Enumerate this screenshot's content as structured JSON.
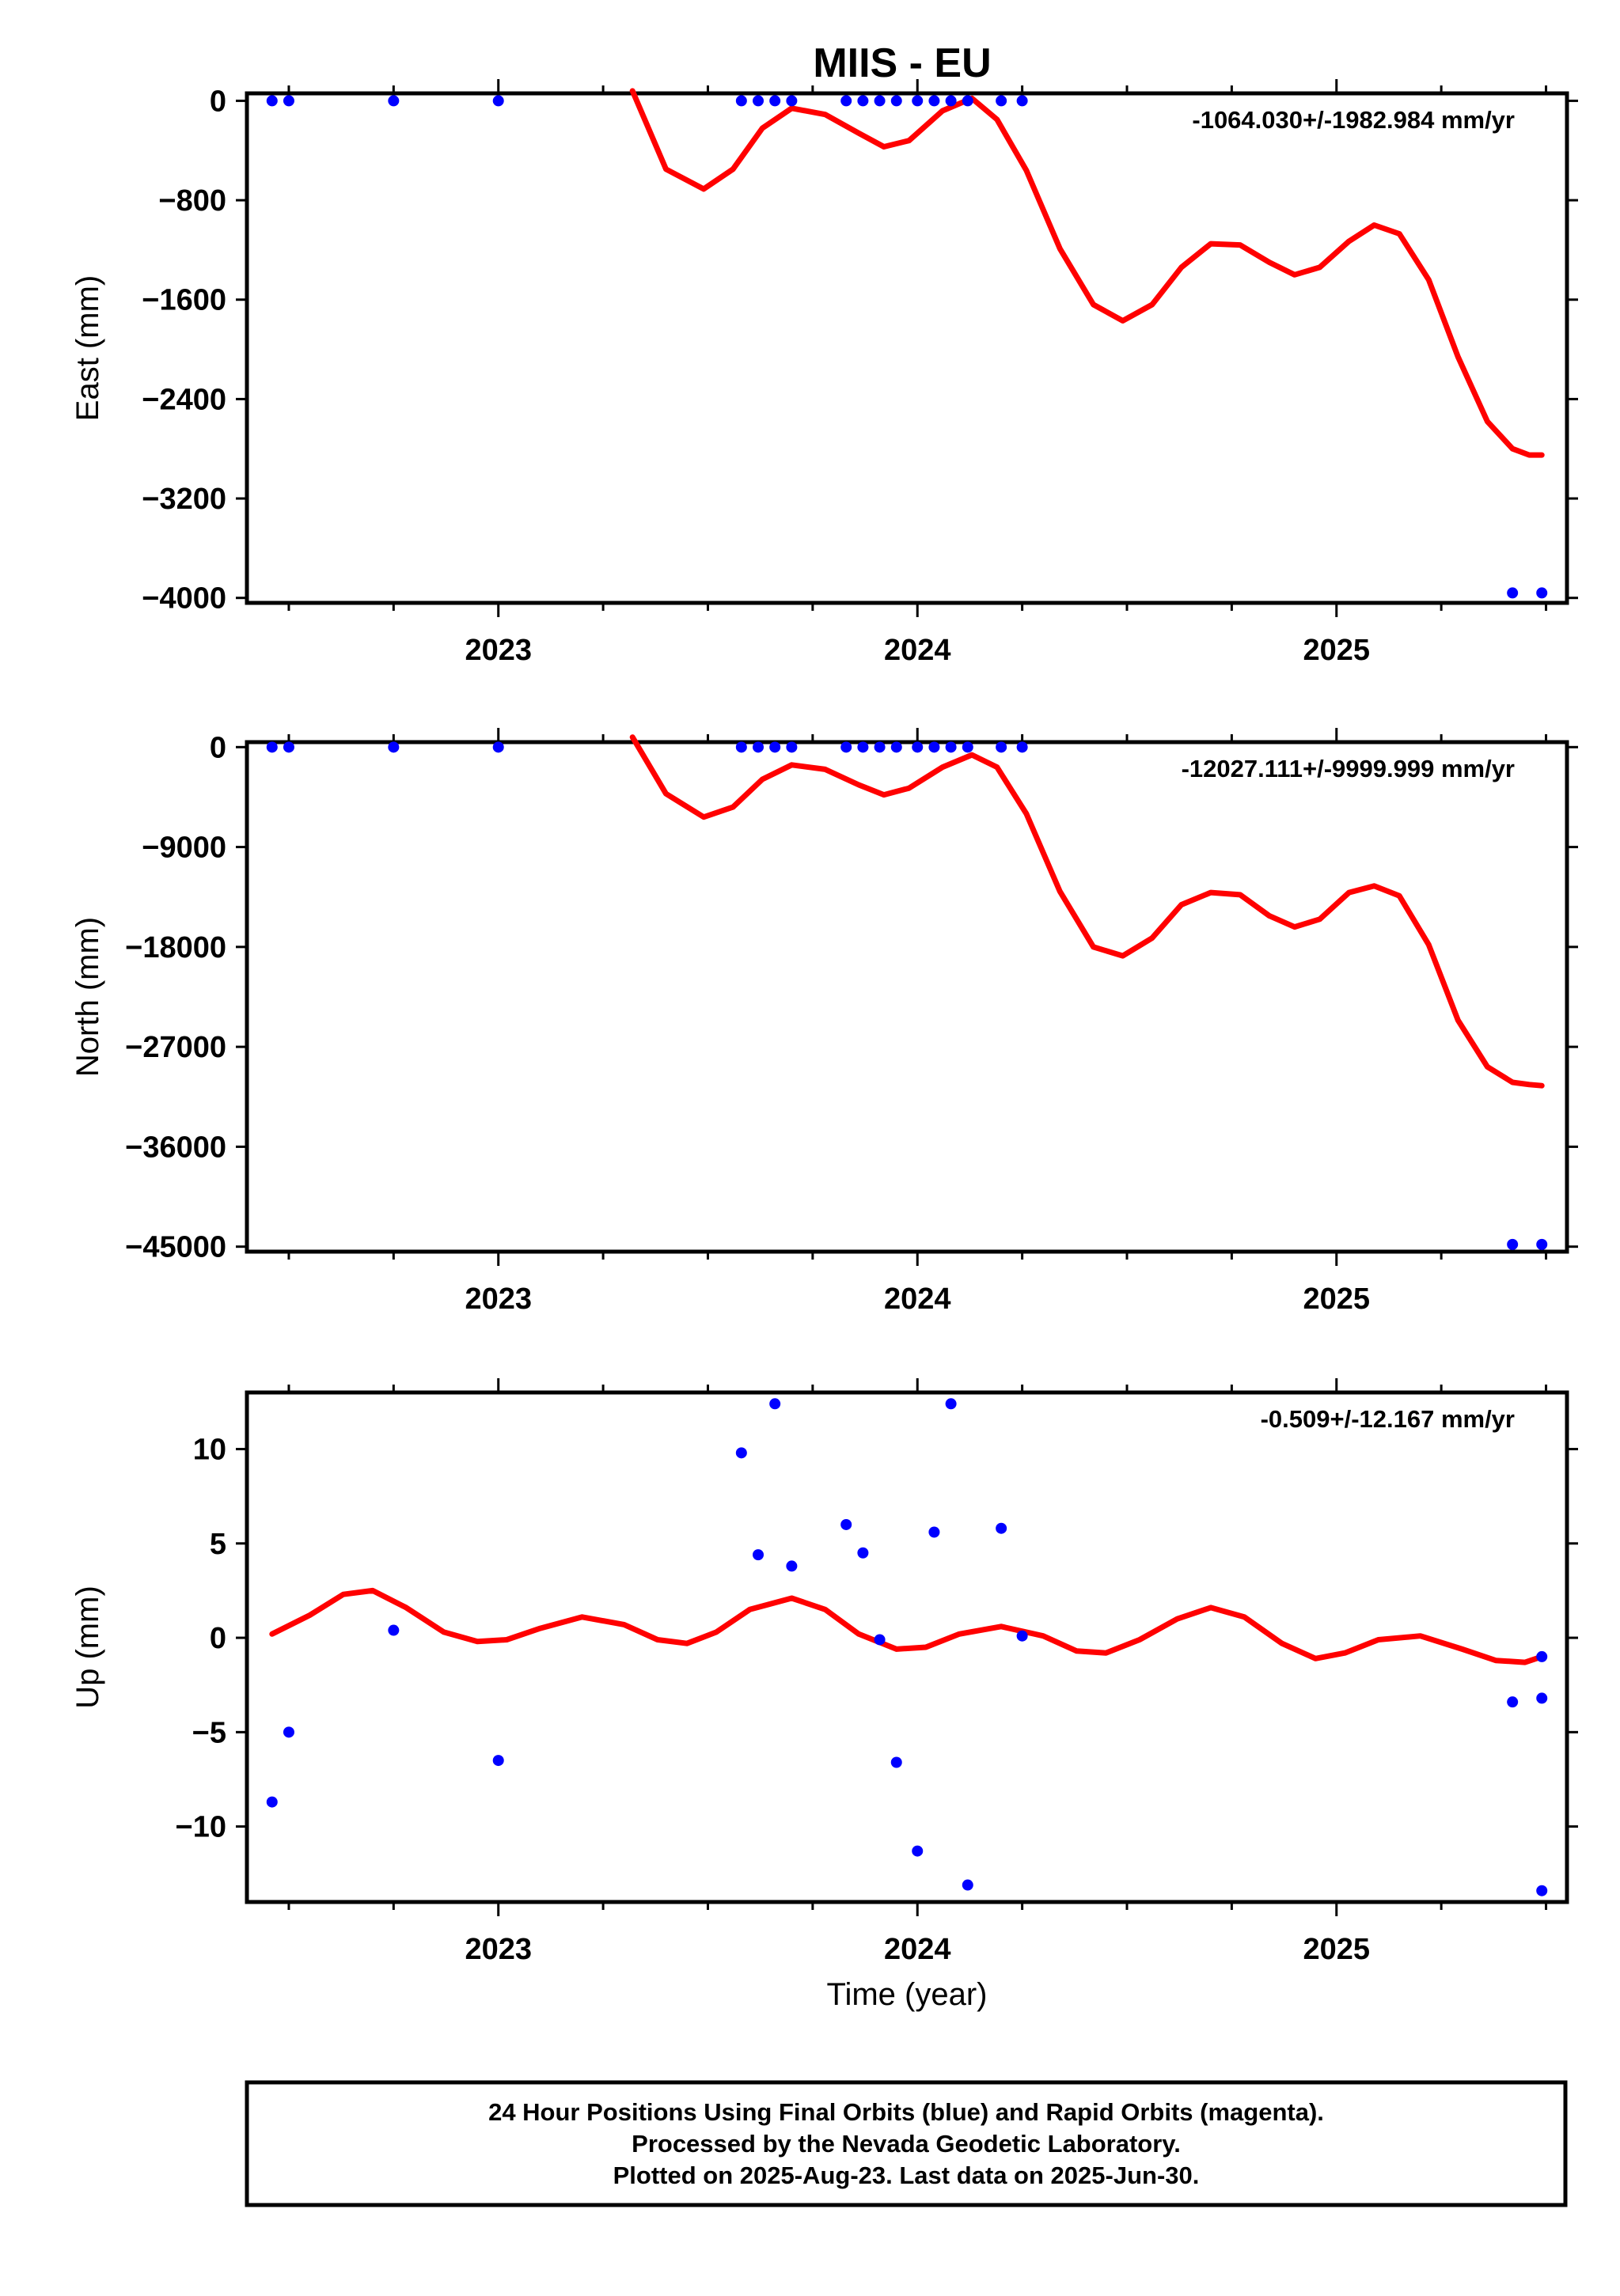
{
  "title": "MIIS - EU",
  "colors": {
    "points": "#0000ff",
    "model": "#ff0000",
    "frame": "#000000"
  },
  "footer": {
    "line1": "24 Hour Positions Using Final Orbits (blue) and Rapid Orbits (magenta).",
    "line2": "Processed by the Nevada Geodetic Laboratory.",
    "line3": "Plotted on 2025-Aug-23. Last data on 2025-Jun-30."
  },
  "chart_data": [
    {
      "type": "scatter",
      "ylabel": "East (mm)",
      "rate": "-1064.030+/-1982.984 mm/yr",
      "xlim": [
        2022.4,
        2025.55
      ],
      "ylim": [
        -4040,
        60
      ],
      "xticks": [
        2023,
        2024,
        2025
      ],
      "yticks": [
        0,
        -800,
        -1600,
        -2400,
        -3200,
        -4000
      ],
      "series": [
        {
          "points": [
            [
              2022.46,
              0
            ],
            [
              2022.5,
              0
            ],
            [
              2022.75,
              0
            ],
            [
              2023.0,
              0
            ],
            [
              2023.58,
              0
            ],
            [
              2023.62,
              0
            ],
            [
              2023.66,
              0
            ],
            [
              2023.7,
              0
            ],
            [
              2023.83,
              0
            ],
            [
              2023.87,
              0
            ],
            [
              2023.91,
              0
            ],
            [
              2023.95,
              0
            ],
            [
              2024.0,
              0
            ],
            [
              2024.04,
              0
            ],
            [
              2024.08,
              0
            ],
            [
              2024.12,
              0
            ],
            [
              2024.2,
              0
            ],
            [
              2024.25,
              0
            ],
            [
              2025.42,
              -3960
            ],
            [
              2025.49,
              -3960
            ]
          ]
        },
        {
          "line": [
            [
              2023.32,
              80
            ],
            [
              2023.4,
              -550
            ],
            [
              2023.49,
              -710
            ],
            [
              2023.56,
              -550
            ],
            [
              2023.63,
              -220
            ],
            [
              2023.7,
              -60
            ],
            [
              2023.78,
              -110
            ],
            [
              2023.86,
              -260
            ],
            [
              2023.92,
              -370
            ],
            [
              2023.98,
              -320
            ],
            [
              2024.06,
              -80
            ],
            [
              2024.13,
              20
            ],
            [
              2024.19,
              -150
            ],
            [
              2024.26,
              -560
            ],
            [
              2024.34,
              -1190
            ],
            [
              2024.42,
              -1640
            ],
            [
              2024.49,
              -1770
            ],
            [
              2024.56,
              -1640
            ],
            [
              2024.63,
              -1340
            ],
            [
              2024.7,
              -1150
            ],
            [
              2024.77,
              -1160
            ],
            [
              2024.84,
              -1300
            ],
            [
              2024.9,
              -1400
            ],
            [
              2024.96,
              -1340
            ],
            [
              2025.03,
              -1130
            ],
            [
              2025.09,
              -1000
            ],
            [
              2025.15,
              -1070
            ],
            [
              2025.22,
              -1440
            ],
            [
              2025.29,
              -2060
            ],
            [
              2025.36,
              -2580
            ],
            [
              2025.42,
              -2800
            ],
            [
              2025.46,
              -2850
            ],
            [
              2025.49,
              -2850
            ]
          ]
        }
      ]
    },
    {
      "type": "scatter",
      "ylabel": "North (mm)",
      "rate": "-12027.111+/-9999.999 mm/yr",
      "xlim": [
        2022.4,
        2025.55
      ],
      "ylim": [
        -45450,
        450
      ],
      "xticks": [
        2023,
        2024,
        2025
      ],
      "yticks": [
        0,
        -9000,
        -18000,
        -27000,
        -36000,
        -45000
      ],
      "series": [
        {
          "points": [
            [
              2022.46,
              0
            ],
            [
              2022.5,
              0
            ],
            [
              2022.75,
              0
            ],
            [
              2023.0,
              0
            ],
            [
              2023.58,
              0
            ],
            [
              2023.62,
              0
            ],
            [
              2023.66,
              0
            ],
            [
              2023.7,
              0
            ],
            [
              2023.83,
              0
            ],
            [
              2023.87,
              0
            ],
            [
              2023.91,
              0
            ],
            [
              2023.95,
              0
            ],
            [
              2024.0,
              0
            ],
            [
              2024.04,
              0
            ],
            [
              2024.08,
              0
            ],
            [
              2024.12,
              0
            ],
            [
              2024.2,
              0
            ],
            [
              2024.25,
              0
            ],
            [
              2025.42,
              -44800
            ],
            [
              2025.49,
              -44800
            ]
          ]
        },
        {
          "line": [
            [
              2023.32,
              900
            ],
            [
              2023.4,
              -4200
            ],
            [
              2023.49,
              -6300
            ],
            [
              2023.56,
              -5400
            ],
            [
              2023.63,
              -2900
            ],
            [
              2023.7,
              -1600
            ],
            [
              2023.78,
              -2000
            ],
            [
              2023.86,
              -3400
            ],
            [
              2023.92,
              -4300
            ],
            [
              2023.98,
              -3700
            ],
            [
              2024.06,
              -1800
            ],
            [
              2024.13,
              -700
            ],
            [
              2024.19,
              -1800
            ],
            [
              2024.26,
              -6000
            ],
            [
              2024.34,
              -13000
            ],
            [
              2024.42,
              -18000
            ],
            [
              2024.49,
              -18800
            ],
            [
              2024.56,
              -17200
            ],
            [
              2024.63,
              -14200
            ],
            [
              2024.7,
              -13100
            ],
            [
              2024.77,
              -13300
            ],
            [
              2024.84,
              -15200
            ],
            [
              2024.9,
              -16200
            ],
            [
              2024.96,
              -15500
            ],
            [
              2025.03,
              -13100
            ],
            [
              2025.09,
              -12500
            ],
            [
              2025.15,
              -13400
            ],
            [
              2025.22,
              -17800
            ],
            [
              2025.29,
              -24600
            ],
            [
              2025.36,
              -28800
            ],
            [
              2025.42,
              -30200
            ],
            [
              2025.46,
              -30400
            ],
            [
              2025.49,
              -30500
            ]
          ]
        }
      ]
    },
    {
      "type": "scatter",
      "ylabel": "Up (mm)",
      "xlabel": "Time (year)",
      "rate": "-0.509+/-12.167 mm/yr",
      "xlim": [
        2022.4,
        2025.55
      ],
      "ylim": [
        -14,
        13
      ],
      "xticks": [
        2023,
        2024,
        2025
      ],
      "yticks": [
        10,
        5,
        0,
        -5,
        -10
      ],
      "series": [
        {
          "points": [
            [
              2022.46,
              -8.7
            ],
            [
              2022.5,
              -5.0
            ],
            [
              2022.75,
              0.4
            ],
            [
              2023.0,
              -6.5
            ],
            [
              2023.58,
              9.8
            ],
            [
              2023.62,
              4.4
            ],
            [
              2023.66,
              12.4
            ],
            [
              2023.7,
              3.8
            ],
            [
              2023.83,
              6.0
            ],
            [
              2023.87,
              4.5
            ],
            [
              2023.91,
              -0.1
            ],
            [
              2023.95,
              -6.6
            ],
            [
              2024.0,
              -11.3
            ],
            [
              2024.04,
              5.6
            ],
            [
              2024.08,
              12.4
            ],
            [
              2024.12,
              -13.1
            ],
            [
              2024.2,
              5.8
            ],
            [
              2024.25,
              0.1
            ],
            [
              2025.42,
              -3.4
            ],
            [
              2025.49,
              -3.2
            ],
            [
              2025.49,
              -1.0
            ],
            [
              2025.49,
              -13.4
            ]
          ]
        },
        {
          "line": [
            [
              2022.46,
              0.2
            ],
            [
              2022.55,
              1.2
            ],
            [
              2022.63,
              2.3
            ],
            [
              2022.7,
              2.5
            ],
            [
              2022.78,
              1.6
            ],
            [
              2022.87,
              0.3
            ],
            [
              2022.95,
              -0.2
            ],
            [
              2023.02,
              -0.1
            ],
            [
              2023.1,
              0.5
            ],
            [
              2023.2,
              1.1
            ],
            [
              2023.3,
              0.7
            ],
            [
              2023.38,
              -0.1
            ],
            [
              2023.45,
              -0.3
            ],
            [
              2023.52,
              0.3
            ],
            [
              2023.6,
              1.5
            ],
            [
              2023.7,
              2.1
            ],
            [
              2023.78,
              1.5
            ],
            [
              2023.86,
              0.2
            ],
            [
              2023.95,
              -0.6
            ],
            [
              2024.02,
              -0.5
            ],
            [
              2024.1,
              0.2
            ],
            [
              2024.2,
              0.6
            ],
            [
              2024.3,
              0.1
            ],
            [
              2024.38,
              -0.7
            ],
            [
              2024.45,
              -0.8
            ],
            [
              2024.53,
              -0.1
            ],
            [
              2024.62,
              1.0
            ],
            [
              2024.7,
              1.6
            ],
            [
              2024.78,
              1.1
            ],
            [
              2024.87,
              -0.3
            ],
            [
              2024.95,
              -1.1
            ],
            [
              2025.02,
              -0.8
            ],
            [
              2025.1,
              -0.1
            ],
            [
              2025.2,
              0.1
            ],
            [
              2025.3,
              -0.6
            ],
            [
              2025.38,
              -1.2
            ],
            [
              2025.45,
              -1.3
            ],
            [
              2025.49,
              -1.0
            ]
          ]
        }
      ]
    }
  ]
}
